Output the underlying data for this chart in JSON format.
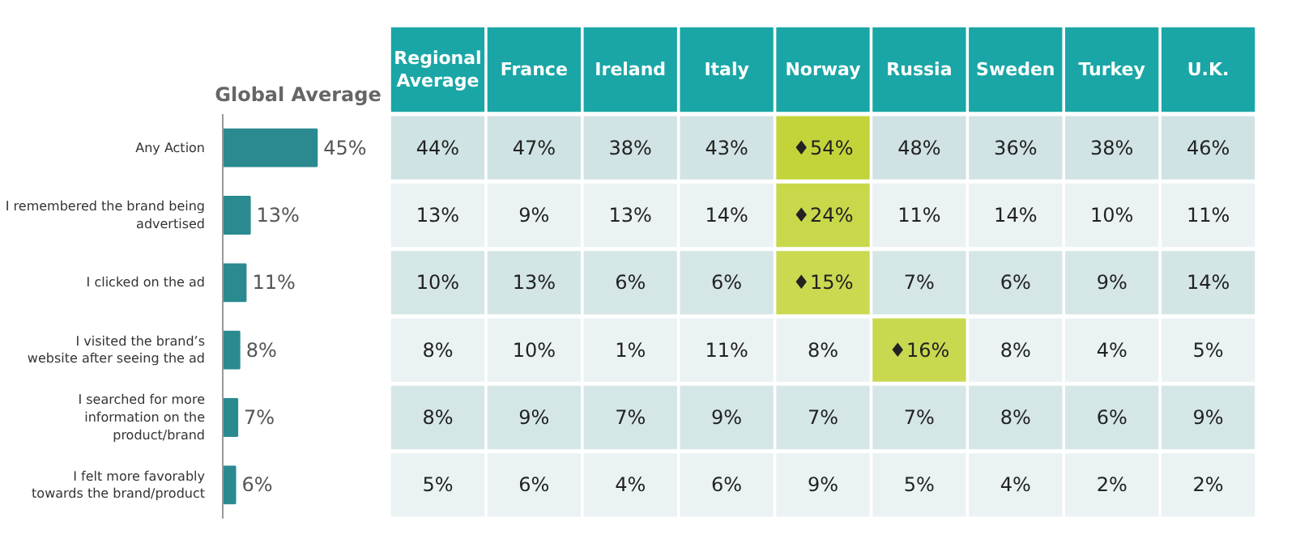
{
  "chart_data": [
    {
      "type": "bar",
      "orientation": "horizontal",
      "title": "Global Average",
      "color": "#2a8a8f",
      "tick_labels": "y",
      "grid": false,
      "categories": [
        "Any Action",
        "I remembered the brand being advertised",
        "I clicked on the ad",
        "I visited the brand’s website after seeing the ad",
        "I searched for more information on the product/brand",
        "I felt more favorably towards the brand/product"
      ],
      "values": [
        45,
        13,
        11,
        8,
        7,
        6
      ],
      "value_labels": [
        "45%",
        "13%",
        "11%",
        "8%",
        "7%",
        "6%"
      ]
    },
    {
      "type": "heatmap",
      "tick_labels": "x",
      "categories": [
        "Regional Average",
        "France",
        "Ireland",
        "Italy",
        "Norway",
        "Russia",
        "Sweden",
        "Turkey",
        "U.K."
      ],
      "y_categories": [
        null,
        null,
        null,
        null,
        null,
        null
      ],
      "cells": [
        [
          44,
          47,
          38,
          43,
          54,
          48,
          36,
          38,
          46
        ],
        [
          13,
          9,
          13,
          14,
          24,
          11,
          14,
          10,
          11
        ],
        [
          10,
          13,
          6,
          6,
          15,
          7,
          6,
          9,
          14
        ],
        [
          8,
          10,
          1,
          11,
          8,
          16,
          8,
          4,
          5
        ],
        [
          8,
          9,
          7,
          9,
          7,
          7,
          8,
          6,
          9
        ],
        [
          5,
          6,
          4,
          6,
          9,
          5,
          4,
          2,
          2
        ]
      ],
      "cell_labels": [
        [
          "44%",
          "47%",
          "38%",
          "43%",
          "♦54%",
          "48%",
          "36%",
          "38%",
          "46%"
        ],
        [
          "13%",
          "9%",
          "13%",
          "14%",
          "♦24%",
          "11%",
          "14%",
          "10%",
          "11%"
        ],
        [
          "10%",
          "13%",
          "6%",
          "6%",
          "♦15%",
          "7%",
          "6%",
          "9%",
          "14%"
        ],
        [
          "8%",
          "10%",
          "1%",
          "11%",
          "8%",
          "♦16%",
          "8%",
          "4%",
          "5%"
        ],
        [
          "8%",
          "9%",
          "7%",
          "9%",
          "7%",
          "7%",
          "8%",
          "6%",
          "9%"
        ],
        [
          "5%",
          "6%",
          "4%",
          "6%",
          "9%",
          "5%",
          "4%",
          "2%",
          "2%"
        ]
      ],
      "colors": [
        [
          "#cfe2e3",
          "#cfe2e3",
          "#cfe2e3",
          "#cfe2e3",
          "#c3d43a",
          "#cfe2e3",
          "#cfe2e3",
          "#cfe2e3",
          "#cfe2e3"
        ],
        [
          "#e8f0f1",
          "#e8f0f1",
          "#e8f0f1",
          "#e8f0f1",
          "#c3d43a",
          "#e8f0f1",
          "#e8f0f1",
          "#e8f0f1",
          "#e8f0f1"
        ],
        [
          "#cfe2e3",
          "#cfe2e3",
          "#cfe2e3",
          "#cfe2e3",
          "#c3d43a",
          "#cfe2e3",
          "#cfe2e3",
          "#cfe2e3",
          "#cfe2e3"
        ],
        [
          "#e8f0f1",
          "#e8f0f1",
          "#e8f0f1",
          "#e8f0f1",
          "#e8f0f1",
          "#c3d43a",
          "#e8f0f1",
          "#e8f0f1",
          "#e8f0f1"
        ],
        [
          "#cfe2e3",
          "#cfe2e3",
          "#cfe2e3",
          "#cfe2e3",
          "#cfe2e3",
          "#cfe2e3",
          "#cfe2e3",
          "#cfe2e3",
          "#cfe2e3"
        ],
        [
          "#e8f0f1",
          "#e8f0f1",
          "#e8f0f1",
          "#e8f0f1",
          "#e8f0f1",
          "#e8f0f1",
          "#e8f0f1",
          "#e8f0f1",
          "#e8f0f1"
        ]
      ]
    }
  ]
}
